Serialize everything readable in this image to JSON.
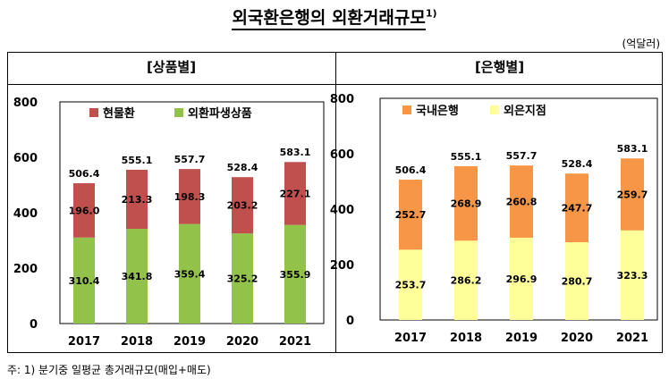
{
  "title": "외국환은행의 외환거래규모",
  "title_sup": "1)",
  "unit": "(억달러)",
  "note": "주: 1) 분기중 일평균 총거래규모(매입+매도)",
  "chart_data": [
    {
      "type": "bar",
      "stacked": true,
      "title": "[상품별]",
      "categories": [
        "2017",
        "2018",
        "2019",
        "2020",
        "2021"
      ],
      "series": [
        {
          "name": "외환파생상품",
          "values": [
            310.4,
            341.8,
            359.4,
            325.2,
            355.9
          ],
          "color": "#92c24a"
        },
        {
          "name": "현물환",
          "values": [
            196.0,
            213.3,
            198.3,
            203.2,
            227.1
          ],
          "color": "#c0504d"
        }
      ],
      "totals": [
        506.4,
        555.1,
        557.7,
        528.4,
        583.1
      ],
      "value_labels": {
        "series0": [
          "310.4",
          "341.8",
          "359.4",
          "325.2",
          "355.9"
        ],
        "series1": [
          "196.0",
          "213.3",
          "198.3",
          "203.2",
          "227.1"
        ],
        "totals": [
          "506.4",
          "555.1",
          "557.7",
          "528.4",
          "583.1"
        ]
      },
      "ylim": [
        0,
        800
      ],
      "yticks": [
        0,
        200,
        400,
        600,
        800
      ],
      "grid": false,
      "legend": "top-left"
    },
    {
      "type": "bar",
      "stacked": true,
      "title": "[은행별]",
      "categories": [
        "2017",
        "2018",
        "2019",
        "2020",
        "2021"
      ],
      "series": [
        {
          "name": "외은지점",
          "values": [
            253.7,
            286.2,
            296.9,
            280.7,
            323.3
          ],
          "color": "#ffff99"
        },
        {
          "name": "국내은행",
          "values": [
            252.7,
            268.9,
            260.8,
            247.7,
            259.7
          ],
          "color": "#f79646"
        }
      ],
      "totals": [
        506.4,
        555.1,
        557.7,
        528.4,
        583.1
      ],
      "value_labels": {
        "series0": [
          "253.7",
          "286.2",
          "296.9",
          "280.7",
          "323.3"
        ],
        "series1": [
          "252.7",
          "268.9",
          "260.8",
          "247.7",
          "259.7"
        ],
        "totals": [
          "506.4",
          "555.1",
          "557.7",
          "528.4",
          "583.1"
        ]
      },
      "ylim": [
        0,
        800
      ],
      "yticks": [
        0,
        200,
        400,
        600,
        800
      ],
      "grid": false,
      "legend": "top-left"
    }
  ]
}
